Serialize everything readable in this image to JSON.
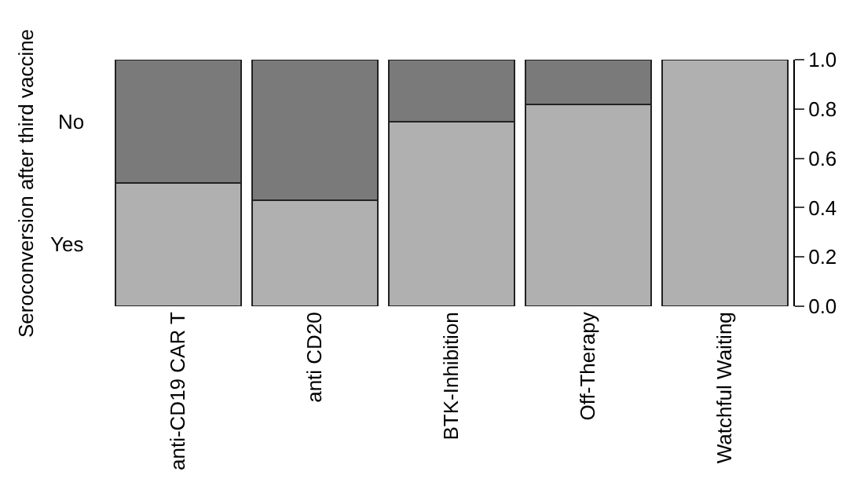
{
  "chart_data": {
    "type": "bar",
    "stacked": true,
    "ylabel": "Seroconversion after third vaccine",
    "categories": [
      "anti-CD19 CAR T",
      "anti CD20",
      "BTK-Inhibition",
      "Off-Therapy",
      "Watchful Waiting"
    ],
    "series": [
      {
        "name": "Yes",
        "color": "#b0b0b0",
        "values": [
          0.5,
          0.43,
          0.75,
          0.82,
          1.0
        ]
      },
      {
        "name": "No",
        "color": "#7a7a7a",
        "values": [
          0.5,
          0.57,
          0.25,
          0.18,
          null
        ]
      }
    ],
    "ylim": [
      0,
      1
    ],
    "yticks": [
      {
        "value": 0,
        "label": "0.0"
      },
      0.2,
      0.4,
      0.6,
      0.8,
      {
        "value": 1,
        "label": "1.0"
      }
    ],
    "legend": false
  }
}
